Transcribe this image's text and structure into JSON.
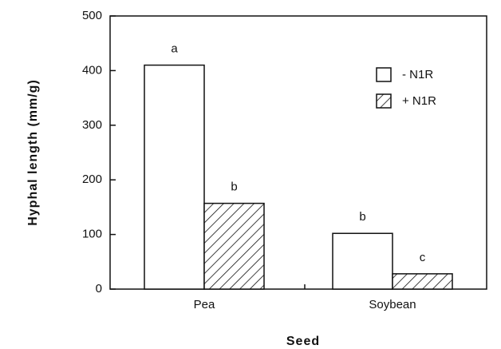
{
  "chart_data": {
    "type": "bar",
    "xlabel": "Seed",
    "ylabel": "Hyphal length (mm/g)",
    "categories": [
      "Pea",
      "Soybean"
    ],
    "series": [
      {
        "name": "- N1R",
        "color": "#ffffff",
        "hatch": false,
        "values": [
          410,
          102
        ],
        "annotations": [
          "a",
          "b"
        ]
      },
      {
        "name": "+ N1R",
        "color": "#ffffff",
        "hatch": true,
        "values": [
          157,
          28
        ],
        "annotations": [
          "b",
          "c"
        ]
      }
    ],
    "ylim": [
      0,
      500
    ],
    "yticks": [
      0,
      100,
      200,
      300,
      400,
      500
    ],
    "grid": false,
    "legend": "upper right"
  }
}
